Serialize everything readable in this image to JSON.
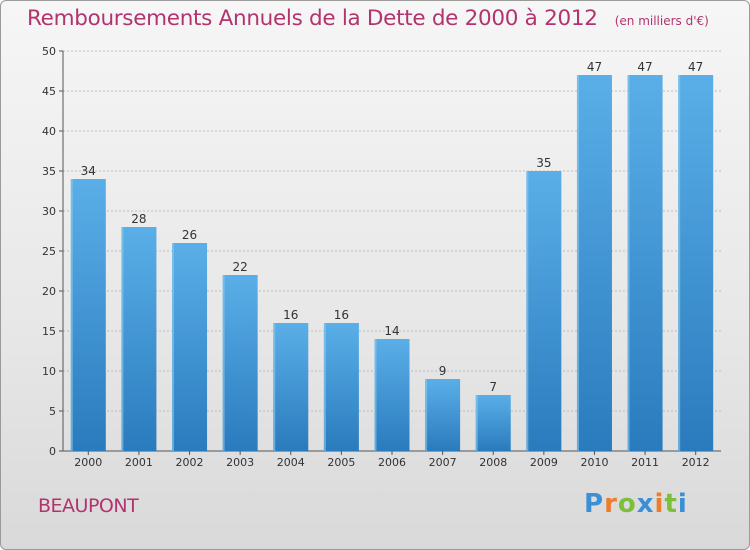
{
  "title": "Remboursements Annuels de la Dette de 2000 à 2012",
  "unit_label": "(en milliers d'€)",
  "place": "BEAUPONT",
  "logo": {
    "text": "Proxiti",
    "letters": [
      {
        "ch": "P",
        "color": "#3a8fd6"
      },
      {
        "ch": "r",
        "color": "#ee7d2b"
      },
      {
        "ch": "o",
        "color": "#7bbf3a"
      },
      {
        "ch": "x",
        "color": "#3a8fd6"
      },
      {
        "ch": "i",
        "color": "#ee7d2b"
      },
      {
        "ch": "t",
        "color": "#7bbf3a"
      },
      {
        "ch": "i",
        "color": "#3a8fd6"
      }
    ]
  },
  "colors": {
    "title": "#b2346f",
    "bar_top": "#5aafe8",
    "bar_bottom": "#2a7bbd",
    "grid": "#bcbcbc"
  },
  "chart_data": {
    "type": "bar",
    "title": "Remboursements Annuels de la Dette de 2000 à 2012",
    "categories": [
      "2000",
      "2001",
      "2002",
      "2003",
      "2004",
      "2005",
      "2006",
      "2007",
      "2008",
      "2009",
      "2010",
      "2011",
      "2012"
    ],
    "values": [
      34,
      28,
      26,
      22,
      16,
      16,
      14,
      9,
      7,
      35,
      47,
      47,
      47
    ],
    "ylim": [
      0,
      50
    ],
    "yticks": [
      0,
      5,
      10,
      15,
      20,
      25,
      30,
      35,
      40,
      45,
      50
    ],
    "grid": true,
    "data_labels": true
  }
}
